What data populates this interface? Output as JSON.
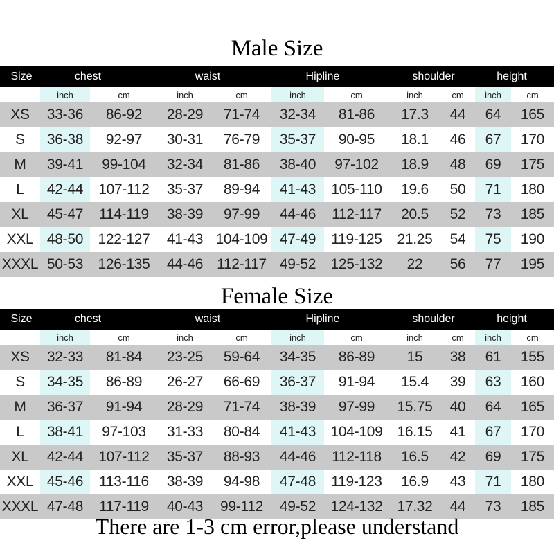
{
  "male": {
    "title": "Male Size",
    "header": [
      "Size",
      "chest",
      "waist",
      "Hipline",
      "shoulder",
      "height"
    ],
    "units": [
      "inch",
      "cm",
      "inch",
      "cm",
      "inch",
      "cm",
      "inch",
      "cm",
      "inch",
      "cm"
    ],
    "rows": [
      [
        "XS",
        "33-36",
        "86-92",
        "28-29",
        "71-74",
        "32-34",
        "81-86",
        "17.3",
        "44",
        "64",
        "165"
      ],
      [
        "S",
        "36-38",
        "92-97",
        "30-31",
        "76-79",
        "35-37",
        "90-95",
        "18.1",
        "46",
        "67",
        "170"
      ],
      [
        "M",
        "39-41",
        "99-104",
        "32-34",
        "81-86",
        "38-40",
        "97-102",
        "18.9",
        "48",
        "69",
        "175"
      ],
      [
        "L",
        "42-44",
        "107-112",
        "35-37",
        "89-94",
        "41-43",
        "105-110",
        "19.6",
        "50",
        "71",
        "180"
      ],
      [
        "XL",
        "45-47",
        "114-119",
        "38-39",
        "97-99",
        "44-46",
        "112-117",
        "20.5",
        "52",
        "73",
        "185"
      ],
      [
        "XXL",
        "48-50",
        "122-127",
        "41-43",
        "104-109",
        "47-49",
        "119-125",
        "21.25",
        "54",
        "75",
        "190"
      ],
      [
        "XXXL",
        "50-53",
        "126-135",
        "44-46",
        "112-117",
        "49-52",
        "125-132",
        "22",
        "56",
        "77",
        "195"
      ]
    ]
  },
  "female": {
    "title": "Female Size",
    "header": [
      "Size",
      "chest",
      "waist",
      "Hipline",
      "shoulder",
      "height"
    ],
    "units": [
      "inch",
      "cm",
      "inch",
      "cm",
      "inch",
      "cm",
      "inch",
      "cm",
      "inch",
      "cm"
    ],
    "rows": [
      [
        "XS",
        "32-33",
        "81-84",
        "23-25",
        "59-64",
        "34-35",
        "86-89",
        "15",
        "38",
        "61",
        "155"
      ],
      [
        "S",
        "34-35",
        "86-89",
        "26-27",
        "66-69",
        "36-37",
        "91-94",
        "15.4",
        "39",
        "63",
        "160"
      ],
      [
        "M",
        "36-37",
        "91-94",
        "28-29",
        "71-74",
        "38-39",
        "97-99",
        "15.75",
        "40",
        "64",
        "165"
      ],
      [
        "L",
        "38-41",
        "97-103",
        "31-33",
        "80-84",
        "41-43",
        "104-109",
        "16.15",
        "41",
        "67",
        "170"
      ],
      [
        "XL",
        "42-44",
        "107-112",
        "35-37",
        "88-93",
        "44-46",
        "112-118",
        "16.5",
        "42",
        "69",
        "175"
      ],
      [
        "XXL",
        "45-46",
        "113-116",
        "38-39",
        "94-98",
        "47-48",
        "119-123",
        "16.9",
        "43",
        "71",
        "180"
      ],
      [
        "XXXL",
        "47-48",
        "117-119",
        "40-43",
        "99-112",
        "49-52",
        "124-132",
        "17.32",
        "44",
        "73",
        "185"
      ]
    ]
  },
  "footer": "There are 1-3 cm error,please understand",
  "colors": {
    "header_bg": "#000000",
    "grey_row": "#c9c9c9",
    "tint_col": "#dff6f6"
  }
}
